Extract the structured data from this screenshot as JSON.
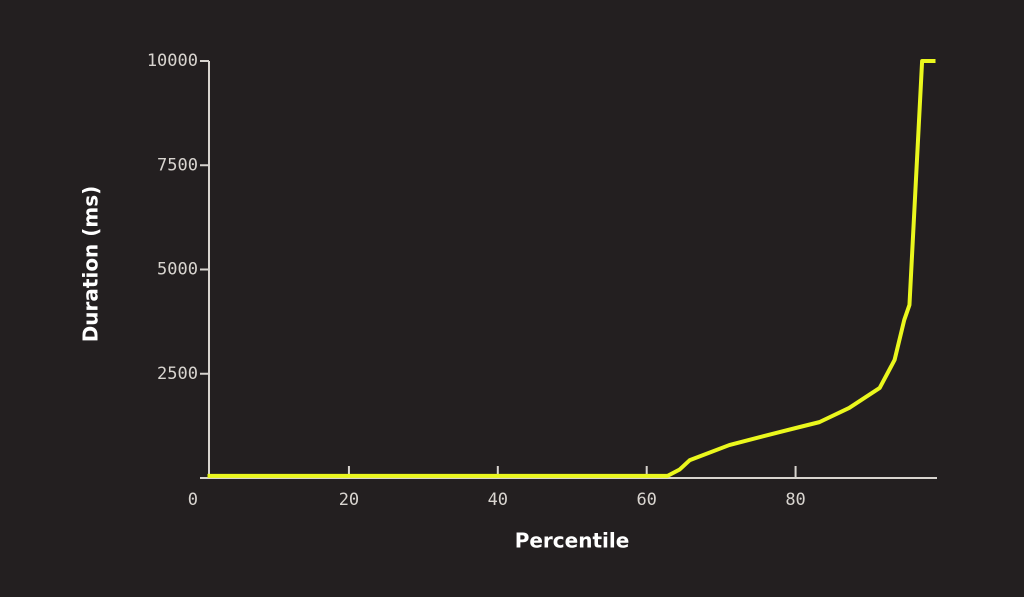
{
  "chart_data": {
    "type": "line",
    "x_label": "Percentile",
    "y_label": "Duration (ms)",
    "x": [
      1,
      62.8,
      64.4,
      65.8,
      71.1,
      77.8,
      80.5,
      83.2,
      87.2,
      91.3,
      93.3,
      94.6,
      95.3,
      97.0,
      98.8
    ],
    "series": [
      {
        "name": "Duration",
        "color": "#eaf71d",
        "values": [
          50,
          50,
          200,
          430,
          790,
          1100,
          1220,
          1340,
          1680,
          2160,
          2830,
          3790,
          4150,
          10000,
          10000
        ]
      }
    ],
    "xlim": [
      1,
      99
    ],
    "xticks": [
      20,
      40,
      60,
      80
    ],
    "ylim": [
      0,
      10000
    ],
    "yticks": [
      0,
      2500,
      5000,
      7500,
      10000
    ]
  }
}
